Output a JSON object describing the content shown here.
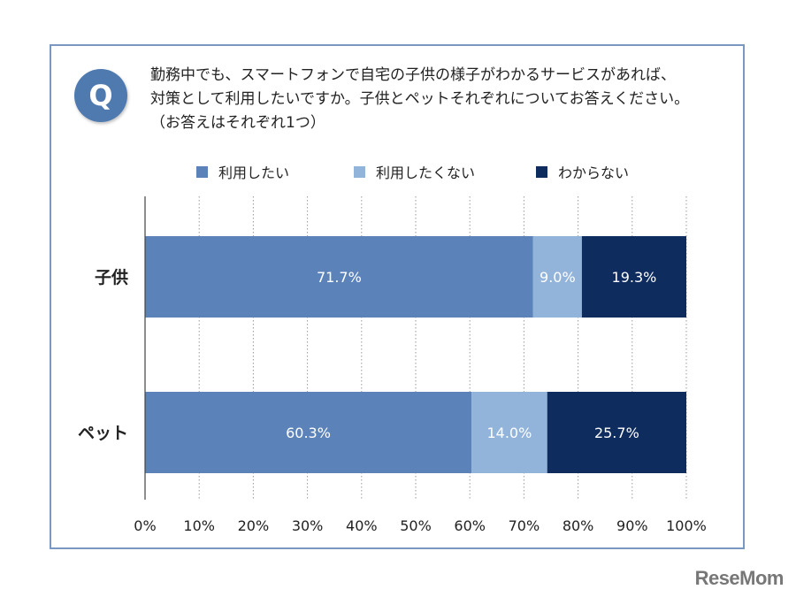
{
  "question": {
    "badge": "Q",
    "lines": [
      "勤務中でも、スマートフォンで自宅の子供の様子がわかるサービスがあれば、",
      "対策として利用したいですか。子供とペットそれぞれについてお答えください。",
      "（お答えはそれぞれ1つ）"
    ]
  },
  "brand": "ReseMom",
  "chart_data": {
    "type": "bar",
    "orientation": "horizontal",
    "stacked": true,
    "categories": [
      "子供",
      "ペット"
    ],
    "series": [
      {
        "name": "利用したい",
        "values": [
          71.7,
          60.3
        ],
        "color": "#5b83b9",
        "label_color": "#ffffff"
      },
      {
        "name": "利用したくない",
        "values": [
          9.0,
          14.0
        ],
        "color": "#93b4da",
        "label_color": "#ffffff"
      },
      {
        "name": "わからない",
        "values": [
          19.3,
          25.7
        ],
        "color": "#0e2c5e",
        "label_color": "#ffffff"
      }
    ],
    "data_labels": [
      [
        "71.7%",
        "60.3%"
      ],
      [
        "9.0%",
        "14.0%"
      ],
      [
        "19.3%",
        "25.7%"
      ]
    ],
    "xlim": [
      0,
      100
    ],
    "x_ticks": [
      "0%",
      "10%",
      "20%",
      "30%",
      "40%",
      "50%",
      "60%",
      "70%",
      "80%",
      "90%",
      "100%"
    ],
    "grid": "vertical-dotted",
    "legend_position": "top"
  }
}
